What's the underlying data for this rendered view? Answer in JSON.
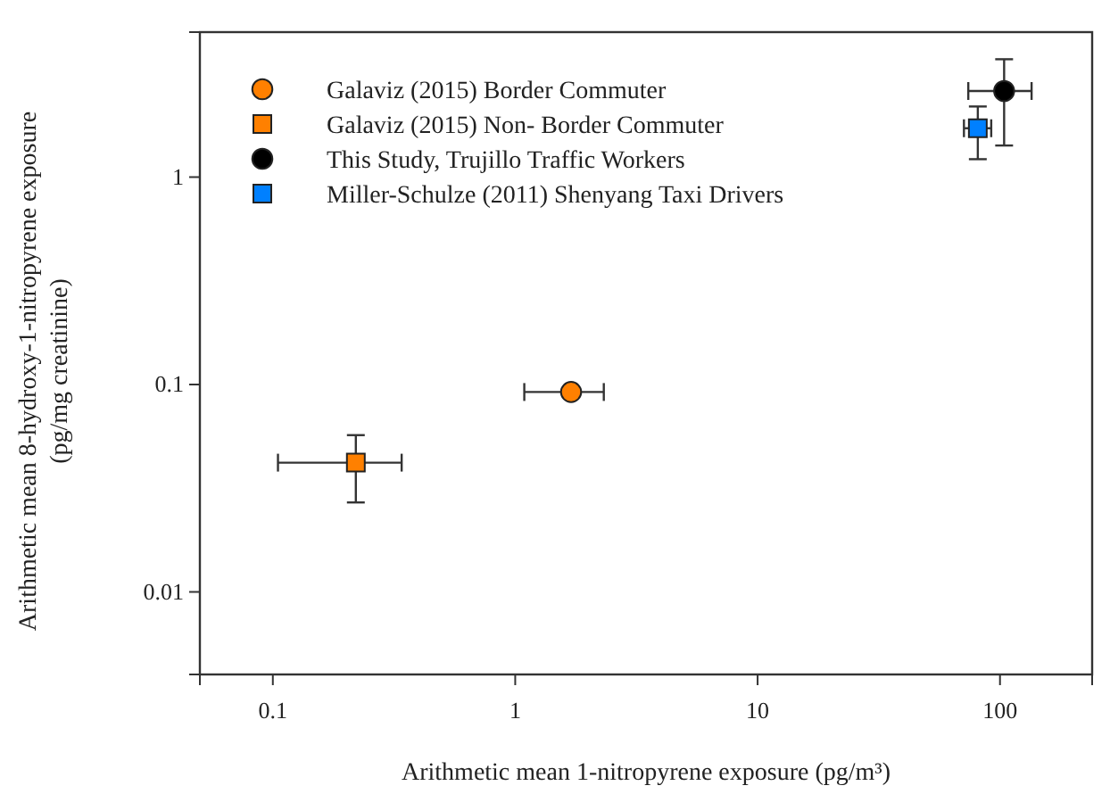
{
  "chart_data": {
    "type": "scatter",
    "xlabel": "Arithmetic mean 1-nitropyrene exposure (pg/m³)",
    "ylabel": "Arithmetic mean 8-hydroxy-1-nitropyrene exposure\n(pg/mg creatinine)",
    "log": "xy",
    "grid": false,
    "legend": "top left",
    "xlim": [
      0.05,
      240
    ],
    "xticks": [
      0.1,
      1,
      10,
      100
    ],
    "ylim": [
      0.004,
      5
    ],
    "yticks": [
      0.01,
      0.1,
      1
    ],
    "series": [
      {
        "name": "Galaviz (2015) Border Commuter",
        "color": "#ff8000",
        "marker": "circle",
        "x": [
          1.7
        ],
        "values": [
          0.092
        ],
        "xerrors": [
          [
            1.09,
            2.32
          ]
        ]
      },
      {
        "name": "Galaviz (2015) Non- Border Commuter",
        "color": "#ff8000",
        "marker": "square",
        "x": [
          0.22
        ],
        "values": [
          0.042
        ],
        "xerrors": [
          [
            0.105,
            0.34
          ]
        ],
        "errors": [
          [
            0.027,
            0.057
          ]
        ]
      },
      {
        "name": "This Study, Trujillo Traffic Workers",
        "color": "#000000",
        "marker": "circle",
        "x": [
          104
        ],
        "values": [
          2.6
        ],
        "xerrors": [
          [
            74,
            135
          ]
        ],
        "errors": [
          [
            1.42,
            3.7
          ]
        ]
      },
      {
        "name": "Miller-Schulze (2011) Shenyang Taxi Drivers",
        "color": "#0080ff",
        "marker": "square",
        "x": [
          81
        ],
        "values": [
          1.72
        ],
        "xerrors": [
          [
            71,
            92
          ]
        ],
        "errors": [
          [
            1.22,
            2.19
          ]
        ]
      }
    ]
  }
}
